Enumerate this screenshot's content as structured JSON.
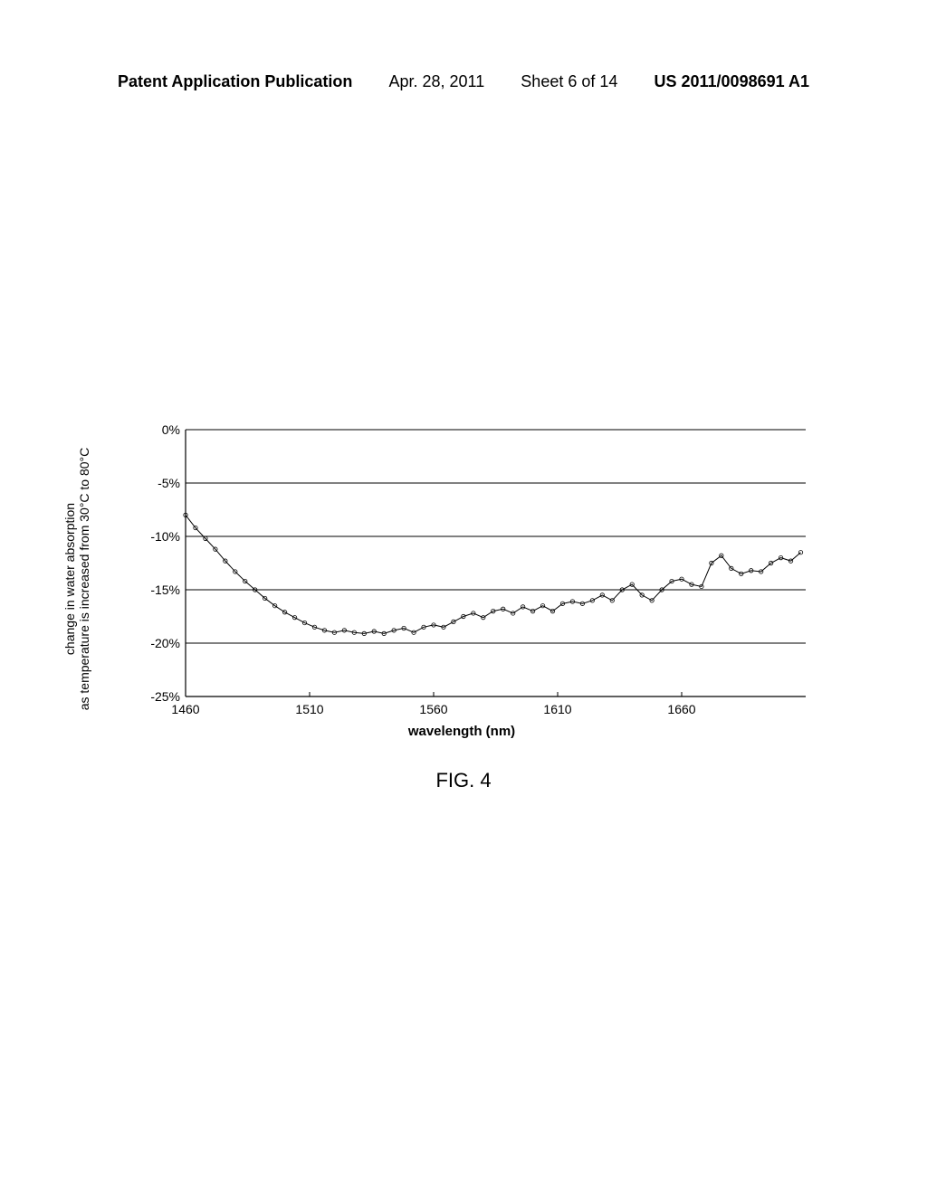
{
  "header": {
    "publication": "Patent Application Publication",
    "date": "Apr. 28, 2011",
    "sheet": "Sheet 6 of 14",
    "docnum": "US 2011/0098691 A1"
  },
  "chart": {
    "type": "line",
    "caption": "FIG. 4",
    "ylabel_line1": "change in water absorption",
    "ylabel_line2": "as temperature is increased from 30°C to 80°C",
    "xlabel": "wavelength (nm)",
    "ylim": [
      -25,
      0
    ],
    "ytick_step": 5,
    "yticks": [
      "0%",
      "-5%",
      "-10%",
      "-15%",
      "-20%",
      "-25%"
    ],
    "ytick_values": [
      0,
      -5,
      -10,
      -15,
      -20,
      -25
    ],
    "xlim": [
      1460,
      1710
    ],
    "xticks": [
      "1460",
      "1510",
      "1560",
      "1610",
      "1660"
    ],
    "xtick_values": [
      1460,
      1510,
      1560,
      1610,
      1660
    ],
    "line_color": "#000000",
    "marker_color": "#000000",
    "grid_color": "#000000",
    "background_color": "#ffffff",
    "axis_width": 1.2,
    "line_width": 1.0,
    "marker_size": 2.2,
    "data": [
      {
        "x": 1460,
        "y": -8.0
      },
      {
        "x": 1464,
        "y": -9.2
      },
      {
        "x": 1468,
        "y": -10.2
      },
      {
        "x": 1472,
        "y": -11.2
      },
      {
        "x": 1476,
        "y": -12.3
      },
      {
        "x": 1480,
        "y": -13.3
      },
      {
        "x": 1484,
        "y": -14.2
      },
      {
        "x": 1488,
        "y": -15.0
      },
      {
        "x": 1492,
        "y": -15.8
      },
      {
        "x": 1496,
        "y": -16.5
      },
      {
        "x": 1500,
        "y": -17.1
      },
      {
        "x": 1504,
        "y": -17.6
      },
      {
        "x": 1508,
        "y": -18.1
      },
      {
        "x": 1512,
        "y": -18.5
      },
      {
        "x": 1516,
        "y": -18.8
      },
      {
        "x": 1520,
        "y": -19.0
      },
      {
        "x": 1524,
        "y": -18.8
      },
      {
        "x": 1528,
        "y": -19.0
      },
      {
        "x": 1532,
        "y": -19.1
      },
      {
        "x": 1536,
        "y": -18.9
      },
      {
        "x": 1540,
        "y": -19.1
      },
      {
        "x": 1544,
        "y": -18.8
      },
      {
        "x": 1548,
        "y": -18.6
      },
      {
        "x": 1552,
        "y": -19.0
      },
      {
        "x": 1556,
        "y": -18.5
      },
      {
        "x": 1560,
        "y": -18.3
      },
      {
        "x": 1564,
        "y": -18.5
      },
      {
        "x": 1568,
        "y": -18.0
      },
      {
        "x": 1572,
        "y": -17.5
      },
      {
        "x": 1576,
        "y": -17.2
      },
      {
        "x": 1580,
        "y": -17.6
      },
      {
        "x": 1584,
        "y": -17.0
      },
      {
        "x": 1588,
        "y": -16.8
      },
      {
        "x": 1592,
        "y": -17.2
      },
      {
        "x": 1596,
        "y": -16.6
      },
      {
        "x": 1600,
        "y": -17.0
      },
      {
        "x": 1604,
        "y": -16.5
      },
      {
        "x": 1608,
        "y": -17.0
      },
      {
        "x": 1612,
        "y": -16.3
      },
      {
        "x": 1616,
        "y": -16.1
      },
      {
        "x": 1620,
        "y": -16.3
      },
      {
        "x": 1624,
        "y": -16.0
      },
      {
        "x": 1628,
        "y": -15.5
      },
      {
        "x": 1632,
        "y": -16.0
      },
      {
        "x": 1636,
        "y": -15.0
      },
      {
        "x": 1640,
        "y": -14.5
      },
      {
        "x": 1644,
        "y": -15.5
      },
      {
        "x": 1648,
        "y": -16.0
      },
      {
        "x": 1652,
        "y": -15.0
      },
      {
        "x": 1656,
        "y": -14.2
      },
      {
        "x": 1660,
        "y": -14.0
      },
      {
        "x": 1664,
        "y": -14.5
      },
      {
        "x": 1668,
        "y": -14.7
      },
      {
        "x": 1672,
        "y": -12.5
      },
      {
        "x": 1676,
        "y": -11.8
      },
      {
        "x": 1680,
        "y": -13.0
      },
      {
        "x": 1684,
        "y": -13.5
      },
      {
        "x": 1688,
        "y": -13.2
      },
      {
        "x": 1692,
        "y": -13.3
      },
      {
        "x": 1696,
        "y": -12.5
      },
      {
        "x": 1700,
        "y": -12.0
      },
      {
        "x": 1704,
        "y": -12.3
      },
      {
        "x": 1708,
        "y": -11.5
      }
    ]
  }
}
